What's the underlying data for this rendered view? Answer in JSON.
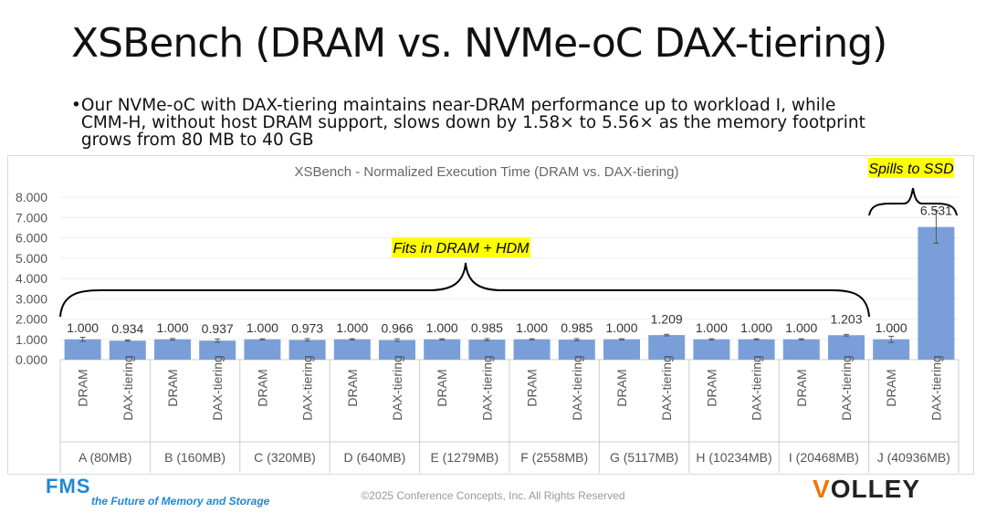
{
  "slide": {
    "title": "XSBench (DRAM vs. NVMe-oC DAX-tiering)",
    "bullet": "Our NVMe-oC with DAX-tiering maintains near-DRAM performance up to workload I, while CMM-H, without host DRAM support, slows down by 1.58× to 5.56× as the memory footprint grows from 80 MB to 40 GB",
    "bullet_marker": "•",
    "copyright": "©2025 Conference Concepts, Inc. All Rights Reserved",
    "logo_left": "FMS",
    "logo_left_tagline": "the Future of Memory and Storage",
    "logo_right": "VOLLEY"
  },
  "chart_data": {
    "type": "bar",
    "title": "XSBench - Normalized Execution Time (DRAM vs. DAX-tiering)",
    "ylim": [
      0,
      8
    ],
    "yticks": [
      "0.000",
      "1.000",
      "2.000",
      "3.000",
      "4.000",
      "5.000",
      "6.000",
      "7.000",
      "8.000"
    ],
    "groups": [
      "A (80MB)",
      "B (160MB)",
      "C (320MB)",
      "D (640MB)",
      "E (1279MB)",
      "F (2558MB)",
      "G (5117MB)",
      "H (10234MB)",
      "I (20468MB)",
      "J (40936MB)"
    ],
    "sub_categories": [
      "DRAM",
      "DAX-tiering"
    ],
    "values": [
      1.0,
      0.934,
      1.0,
      0.937,
      1.0,
      0.973,
      1.0,
      0.966,
      1.0,
      0.985,
      1.0,
      0.985,
      1.0,
      1.209,
      1.0,
      1.0,
      1.0,
      1.203,
      1.0,
      6.531
    ],
    "labels": [
      "1.000",
      "0.934",
      "1.000",
      "0.937",
      "1.000",
      "0.973",
      "1.000",
      "0.966",
      "1.000",
      "0.985",
      "1.000",
      "0.985",
      "1.000",
      "1.209",
      "1.000",
      "1.000",
      "1.000",
      "1.203",
      "1.000",
      "6.531"
    ],
    "errors": [
      0.1,
      0.03,
      0.04,
      0.08,
      0.03,
      0.06,
      0.03,
      0.06,
      0.03,
      0.05,
      0.03,
      0.05,
      0.03,
      0.04,
      0.03,
      0.03,
      0.03,
      0.04,
      0.15,
      0.8
    ],
    "bar_color": "#7a9fd8",
    "annotations": [
      {
        "text": "Fits in DRAM + HDM",
        "highlight": "#ffff00"
      },
      {
        "text": "Spills to SSD",
        "highlight": "#ffff00"
      }
    ],
    "grid": true
  }
}
